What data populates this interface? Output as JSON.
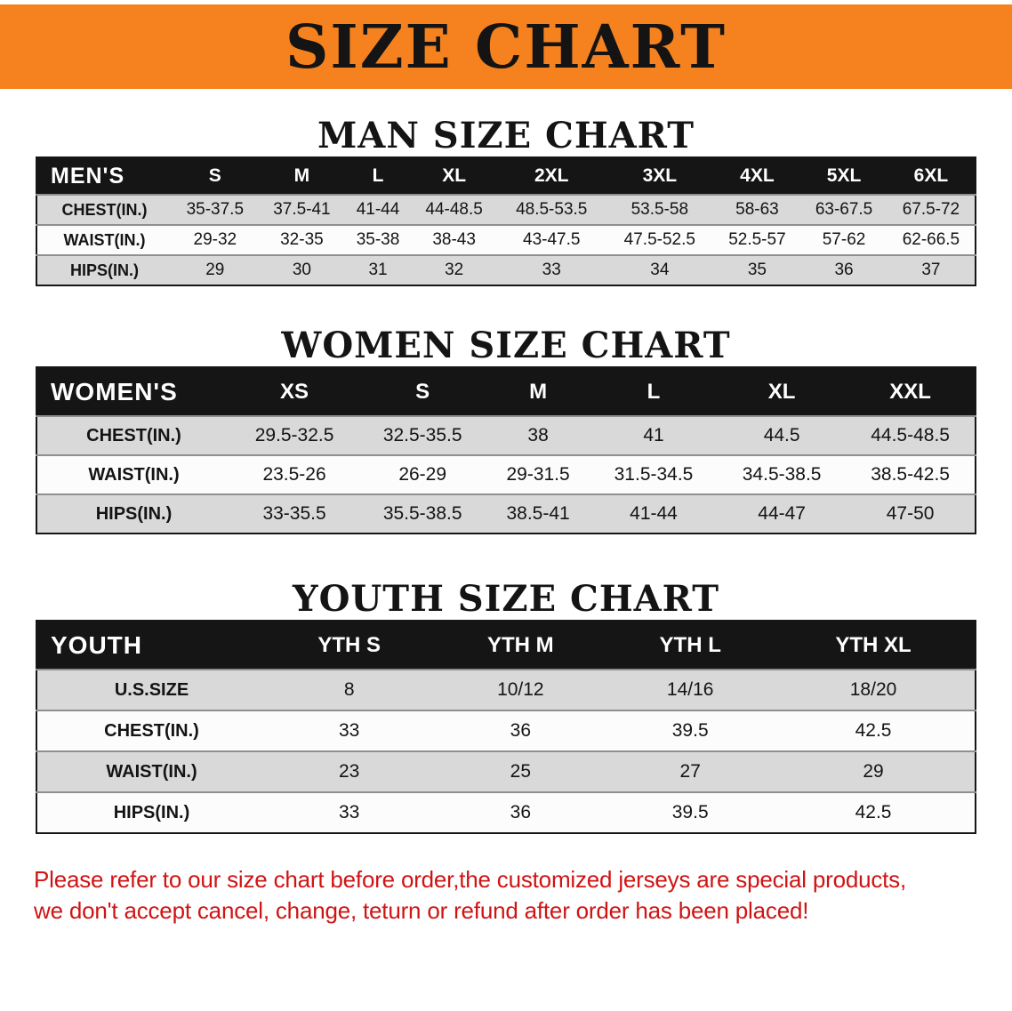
{
  "banner": {
    "title": "SIZE CHART"
  },
  "colors": {
    "banner_orange": "#f5821f",
    "header_black": "#151515",
    "row_gray": "#d9d9d9",
    "disclaimer_red": "#cf1414"
  },
  "sections": [
    {
      "heading": "MAN SIZE CHART",
      "table": {
        "header": [
          "MEN'S",
          "S",
          "M",
          "L",
          "XL",
          "2XL",
          "3XL",
          "4XL",
          "5XL",
          "6XL"
        ],
        "rows": [
          {
            "label": "CHEST(IN.)",
            "values": [
              "35-37.5",
              "37.5-41",
              "41-44",
              "44-48.5",
              "48.5-53.5",
              "53.5-58",
              "58-63",
              "63-67.5",
              "67.5-72"
            ]
          },
          {
            "label": "WAIST(IN.)",
            "values": [
              "29-32",
              "32-35",
              "35-38",
              "38-43",
              "43-47.5",
              "47.5-52.5",
              "52.5-57",
              "57-62",
              "62-66.5"
            ]
          },
          {
            "label": "HIPS(IN.)",
            "values": [
              "29",
              "30",
              "31",
              "32",
              "33",
              "34",
              "35",
              "36",
              "37"
            ]
          }
        ]
      }
    },
    {
      "heading": "WOMEN SIZE CHART",
      "table": {
        "header": [
          "WOMEN'S",
          "XS",
          "S",
          "M",
          "L",
          "XL",
          "XXL"
        ],
        "rows": [
          {
            "label": "CHEST(IN.)",
            "values": [
              "29.5-32.5",
              "32.5-35.5",
              "38",
              "41",
              "44.5",
              "44.5-48.5"
            ]
          },
          {
            "label": "WAIST(IN.)",
            "values": [
              "23.5-26",
              "26-29",
              "29-31.5",
              "31.5-34.5",
              "34.5-38.5",
              "38.5-42.5"
            ]
          },
          {
            "label": "HIPS(IN.)",
            "values": [
              "33-35.5",
              "35.5-38.5",
              "38.5-41",
              "41-44",
              "44-47",
              "47-50"
            ]
          }
        ]
      }
    },
    {
      "heading": "YOUTH SIZE CHART",
      "table": {
        "header": [
          "YOUTH",
          "YTH S",
          "YTH M",
          "YTH L",
          "YTH XL"
        ],
        "rows": [
          {
            "label": "U.S.SIZE",
            "values": [
              "8",
              "10/12",
              "14/16",
              "18/20"
            ]
          },
          {
            "label": "CHEST(IN.)",
            "values": [
              "33",
              "36",
              "39.5",
              "42.5"
            ]
          },
          {
            "label": "WAIST(IN.)",
            "values": [
              "23",
              "25",
              "27",
              "29"
            ]
          },
          {
            "label": "HIPS(IN.)",
            "values": [
              "33",
              "36",
              "39.5",
              "42.5"
            ]
          }
        ]
      }
    }
  ],
  "footer": {
    "line1": "Please refer to our size chart before order,the customized jerseys are special products,",
    "line2": "we don't accept cancel, change, teturn or refund after order has been placed!"
  }
}
